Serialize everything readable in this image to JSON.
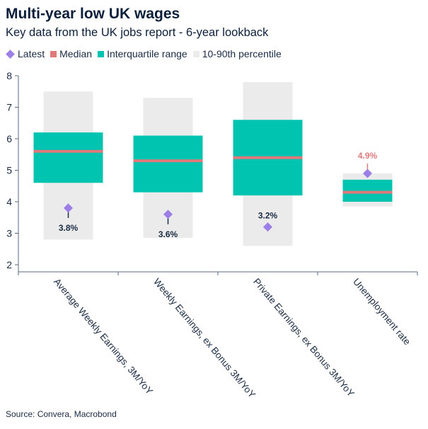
{
  "header": {
    "title": "Multi-year low UK wages",
    "subtitle": "Key data from the UK jobs report - 6-year lookback"
  },
  "legend": [
    {
      "key": "latest",
      "label": "Latest",
      "color": "#9b7ee6"
    },
    {
      "key": "median",
      "label": "Median",
      "color": "#e07a7a"
    },
    {
      "key": "iqr",
      "label": "Interquartile range",
      "color": "#00c4b0"
    },
    {
      "key": "p1090",
      "label": "10-90th percentile",
      "color": "#ebebeb"
    }
  ],
  "source": "Source: Convera, Macrobond",
  "chart_data": {
    "type": "box",
    "ylim": [
      2,
      8
    ],
    "yticks": [
      2,
      3,
      4,
      5,
      6,
      7,
      8
    ],
    "categories": [
      "Average Weekly Earnings, 3M/YoY",
      "Weekly Earnings, ex Bonus 3M/YoY",
      "Private Earnings, ex Bonus 3M/YoY",
      "Unemployment rate"
    ],
    "series": [
      {
        "p10": 2.8,
        "p25": 4.6,
        "median": 5.6,
        "p75": 6.2,
        "p90": 7.5,
        "latest": 3.8,
        "label": "3.8%"
      },
      {
        "p10": 2.85,
        "p25": 4.3,
        "median": 5.3,
        "p75": 6.1,
        "p90": 7.3,
        "latest": 3.6,
        "label": "3.6%"
      },
      {
        "p10": 2.6,
        "p25": 4.2,
        "median": 5.4,
        "p75": 6.6,
        "p90": 7.8,
        "latest": 3.2,
        "label": "3.2%"
      },
      {
        "p10": 3.85,
        "p25": 4.0,
        "median": 4.3,
        "p75": 4.7,
        "p90": 4.9,
        "latest": 4.9,
        "label": "4.9%"
      }
    ],
    "grid": false,
    "legend_position": "top-left"
  }
}
